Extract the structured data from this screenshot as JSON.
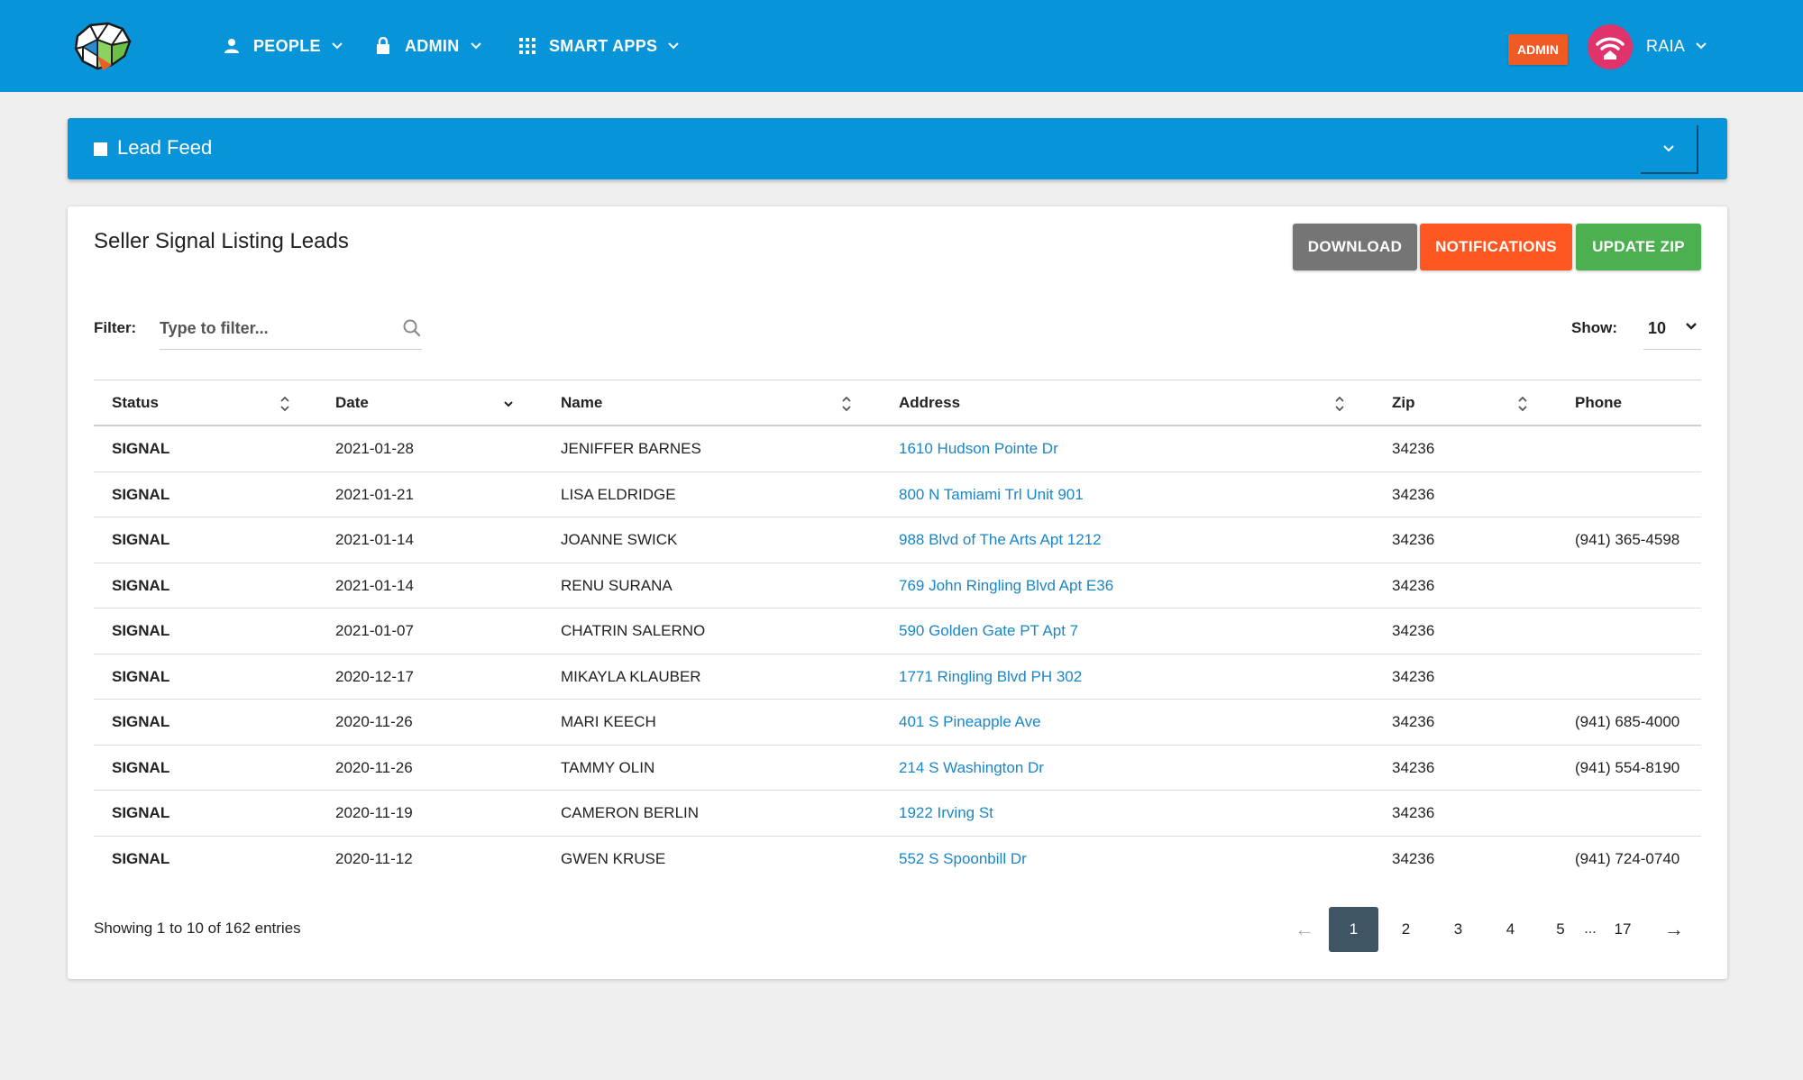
{
  "nav": {
    "people_label": "PEOPLE",
    "admin_label": "ADMIN",
    "smart_apps_label": "SMART APPS",
    "admin_badge": "ADMIN",
    "user_name": "RAIA"
  },
  "lead_feed": {
    "title": "Lead Feed"
  },
  "card": {
    "title": "Seller Signal Listing Leads",
    "buttons": {
      "download": "DOWNLOAD",
      "notifications": "NOTIFICATIONS",
      "update_zip": "UPDATE ZIP"
    },
    "filter_label": "Filter:",
    "filter_placeholder": "Type to filter...",
    "show_label": "Show:",
    "show_value": "10"
  },
  "table": {
    "headers": [
      "Status",
      "Date",
      "Name",
      "Address",
      "Zip",
      "Phone"
    ],
    "rows": [
      {
        "status": "SIGNAL",
        "date": "2021-01-28",
        "name": "JENIFFER BARNES",
        "address": "1610 Hudson Pointe Dr",
        "zip": "34236",
        "phone": ""
      },
      {
        "status": "SIGNAL",
        "date": "2021-01-21",
        "name": "LISA ELDRIDGE",
        "address": "800 N Tamiami Trl Unit 901",
        "zip": "34236",
        "phone": ""
      },
      {
        "status": "SIGNAL",
        "date": "2021-01-14",
        "name": "JOANNE SWICK",
        "address": "988 Blvd of The Arts Apt 1212",
        "zip": "34236",
        "phone": "(941) 365-4598"
      },
      {
        "status": "SIGNAL",
        "date": "2021-01-14",
        "name": "RENU SURANA",
        "address": "769 John Ringling Blvd Apt E36",
        "zip": "34236",
        "phone": ""
      },
      {
        "status": "SIGNAL",
        "date": "2021-01-07",
        "name": "CHATRIN SALERNO",
        "address": "590 Golden Gate PT Apt 7",
        "zip": "34236",
        "phone": ""
      },
      {
        "status": "SIGNAL",
        "date": "2020-12-17",
        "name": "MIKAYLA KLAUBER",
        "address": "1771 Ringling Blvd PH 302",
        "zip": "34236",
        "phone": ""
      },
      {
        "status": "SIGNAL",
        "date": "2020-11-26",
        "name": "MARI KEECH",
        "address": "401 S Pineapple Ave",
        "zip": "34236",
        "phone": "(941) 685-4000"
      },
      {
        "status": "SIGNAL",
        "date": "2020-11-26",
        "name": "TAMMY OLIN",
        "address": "214 S Washington Dr",
        "zip": "34236",
        "phone": "(941) 554-8190"
      },
      {
        "status": "SIGNAL",
        "date": "2020-11-19",
        "name": "CAMERON BERLIN",
        "address": "1922 Irving St",
        "zip": "34236",
        "phone": ""
      },
      {
        "status": "SIGNAL",
        "date": "2020-11-12",
        "name": "GWEN KRUSE",
        "address": "552 S Spoonbill Dr",
        "zip": "34236",
        "phone": "(941) 724-0740"
      }
    ]
  },
  "footer": {
    "entries_text": "Showing 1 to 10 of 162 entries",
    "pages": [
      "1",
      "2",
      "3",
      "4",
      "5"
    ],
    "ellipsis": "...",
    "last_page": "17",
    "prev": "←",
    "next": "→"
  },
  "colors": {
    "brand_blue": "#0794d8",
    "link_blue": "#1a86c7",
    "download_gray": "#757575",
    "notifications_orange": "#ff5722",
    "update_zip_green": "#4caf50",
    "active_page": "#3f5563"
  },
  "icons": {
    "people": "person-icon",
    "admin": "lock-icon",
    "smart_apps": "grid-icon",
    "avatar": "wifi-home-icon",
    "filter": "search-icon"
  }
}
